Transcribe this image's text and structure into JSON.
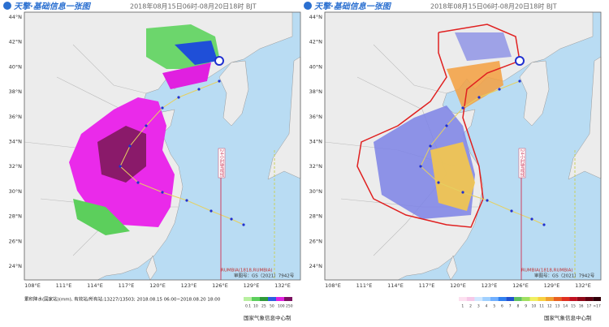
{
  "lat_labels": [
    "44°N",
    "42°N",
    "40°N",
    "38°N",
    "36°N",
    "34°N",
    "32°N",
    "30°N",
    "28°N",
    "26°N",
    "24°N"
  ],
  "lon_labels": [
    "108°E",
    "111°E",
    "114°E",
    "117°E",
    "120°E",
    "123°E",
    "126°E",
    "129°E",
    "132°E"
  ],
  "warning_line": "24小时警戒线",
  "typhoon": "RUMBIA(1818,RUMBIA)",
  "map_approval": "审图号：GS（2021）7942号",
  "credit": "国家气象信息中心制",
  "panels": [
    {
      "logo": "天擎·基础信息一张图",
      "time": "2018年08月15日06时-08月20日18时 BJT",
      "legend_title": "累积降水(国家站)(mm), 有效站/所有站:13227/13503; 2018.08.15 06:00~2018.08.20 18:00",
      "legend_ticks": [
        "0.1",
        "10",
        "25",
        "50",
        "100",
        "250"
      ]
    },
    {
      "logo": "天擎·基础信息一张图",
      "time": "2018年08月15日06时-08月20日18时 BJT",
      "legend_ticks": [
        "1",
        "2",
        "3",
        "4",
        "5",
        "6",
        "7",
        "8",
        "9",
        "10",
        "11",
        "12",
        "13",
        "14",
        "15",
        "16",
        "17",
        ">17"
      ]
    }
  ]
}
